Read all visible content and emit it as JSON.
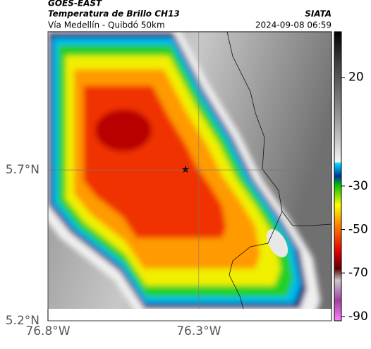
{
  "header": {
    "source": "GOES-EAST",
    "title": "Temperatura de Brillo CH13",
    "subtitle": "Vía Medellín - Quibdó 50km",
    "agency": "SIATA",
    "timestamp": "2024-09-08 06:59"
  },
  "map": {
    "xlim": [
      -76.8,
      -75.86
    ],
    "ylim": [
      5.2,
      6.158
    ],
    "xticks": [
      {
        "value": -76.8,
        "label": "76.8°W"
      },
      {
        "value": -76.3,
        "label": "76.3°W"
      }
    ],
    "yticks": [
      {
        "value": 5.2,
        "label": "5.2°N"
      },
      {
        "value": 5.7,
        "label": "5.7°N"
      }
    ],
    "grid": true
  },
  "colorbar": {
    "lim": [
      41,
      -92
    ],
    "ticks": [
      20,
      -30,
      -50,
      -70,
      -90
    ]
  }
}
